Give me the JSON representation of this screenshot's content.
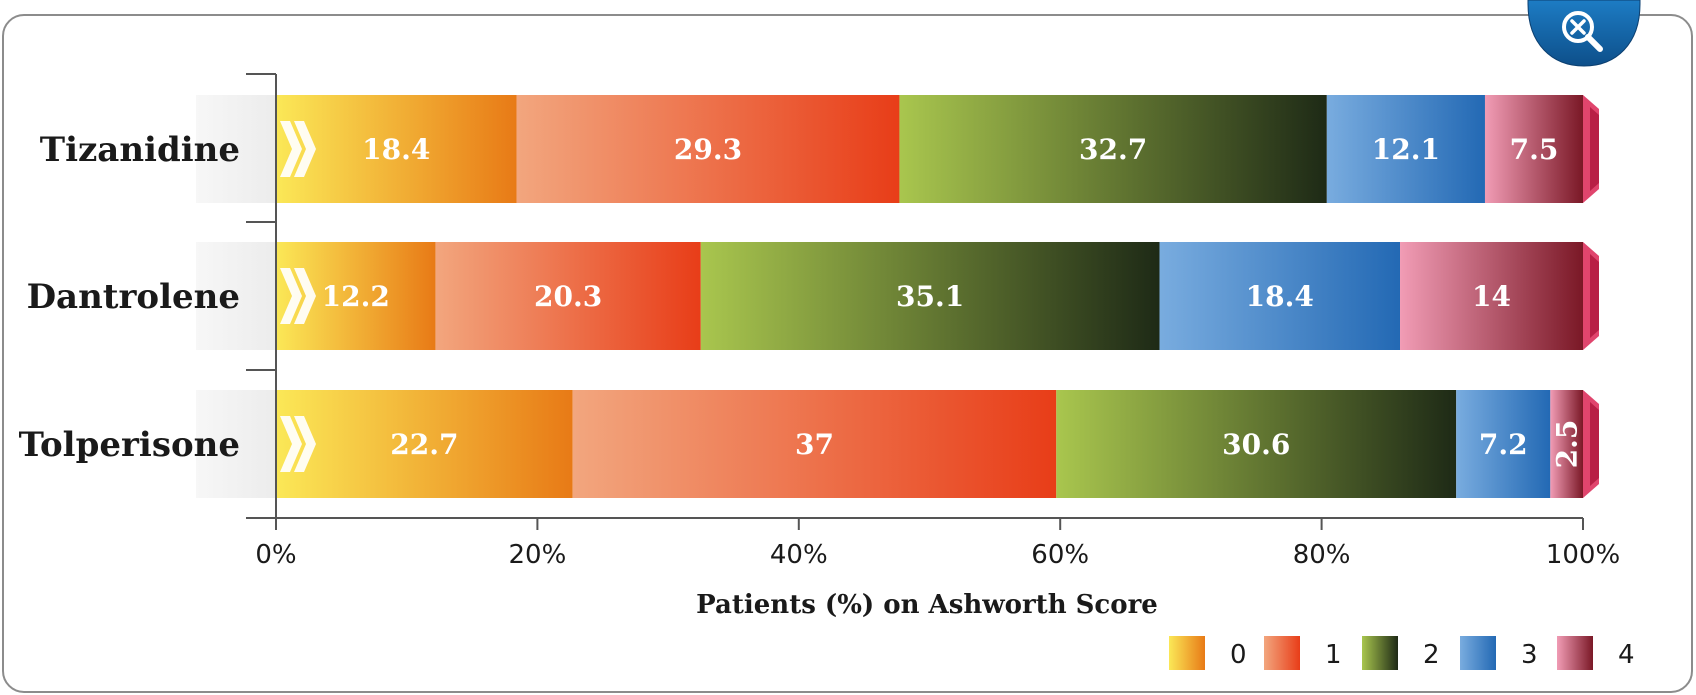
{
  "chart_data": {
    "type": "bar",
    "orientation": "horizontal",
    "stacked": true,
    "normalized_percent": true,
    "categories": [
      "Tizanidine",
      "Dantrolene",
      "Tolperisone"
    ],
    "series": [
      {
        "name": "0",
        "values": [
          18.4,
          12.2,
          22.7
        ],
        "colors": [
          "#fbe857",
          "#e87a16"
        ]
      },
      {
        "name": "1",
        "values": [
          29.3,
          20.3,
          37
        ],
        "colors": [
          "#f2a67e",
          "#e83d18"
        ]
      },
      {
        "name": "2",
        "values": [
          32.7,
          35.1,
          30.6
        ],
        "colors": [
          "#a9c64e",
          "#1e2a16"
        ]
      },
      {
        "name": "3",
        "values": [
          12.1,
          18.4,
          7.2
        ],
        "colors": [
          "#79acdf",
          "#2369b4"
        ]
      },
      {
        "name": "4",
        "values": [
          7.5,
          14,
          2.5
        ],
        "colors": [
          "#f19cb5",
          "#7a1826"
        ]
      }
    ],
    "xlim": [
      0,
      100
    ],
    "xticks": [
      "0%",
      "20%",
      "40%",
      "60%",
      "80%",
      "100%"
    ],
    "xlabel": "Patients (%) on Ashworth Score",
    "ylabel": "",
    "title": "",
    "grid": false,
    "legend_position": "bottom-right"
  },
  "ui": {
    "zoom_icon": "zoom-out-magnifier-icon",
    "zoom_color": "#1565a8"
  }
}
